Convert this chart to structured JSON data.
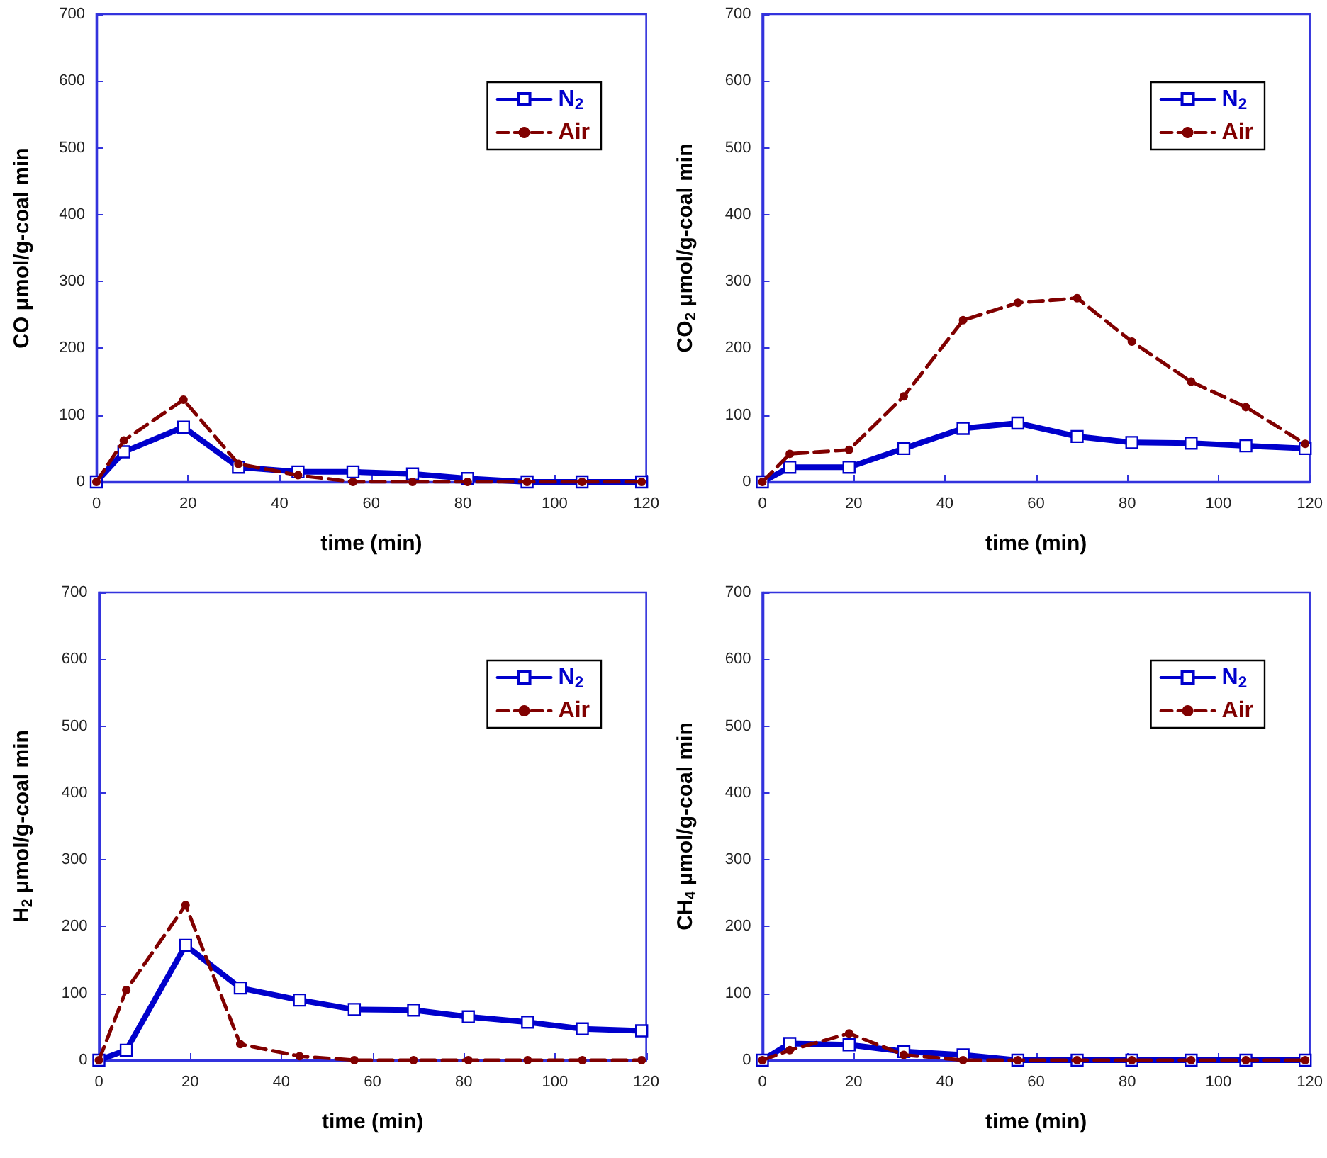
{
  "chart_data": [
    {
      "type": "line",
      "xlabel": "time (min)",
      "ylabel": "CO μmol/g-coal min",
      "x": [
        0,
        6,
        19,
        31,
        44,
        56,
        69,
        81,
        94,
        106,
        119
      ],
      "xlim": [
        0,
        120
      ],
      "xticks": [
        0,
        20,
        40,
        60,
        80,
        100,
        120
      ],
      "ylim": [
        0,
        700
      ],
      "yticks": [
        0,
        100,
        200,
        300,
        400,
        500,
        600,
        700
      ],
      "grid": false,
      "legend": "top right",
      "series": [
        {
          "name": "N$_{2}$",
          "color": "#0000cc",
          "marker": "square",
          "line_style": "solid",
          "values": [
            0,
            45,
            82,
            22,
            15,
            15,
            12,
            5,
            0,
            0,
            0
          ]
        },
        {
          "name": "Air",
          "color": "#800000",
          "marker": "circle",
          "line_style": "dashed",
          "values": [
            0,
            62,
            123,
            27,
            10,
            0,
            0,
            0,
            0,
            0,
            0
          ]
        }
      ]
    },
    {
      "type": "line",
      "xlabel": "time (min)",
      "ylabel": "CO$_{2}$ μmol/g-coal min",
      "x": [
        0,
        6,
        19,
        31,
        44,
        56,
        69,
        81,
        94,
        106,
        119
      ],
      "xlim": [
        0,
        120
      ],
      "xticks": [
        0,
        20,
        40,
        60,
        80,
        100,
        120
      ],
      "ylim": [
        0,
        700
      ],
      "yticks": [
        0,
        100,
        200,
        300,
        400,
        500,
        600,
        700
      ],
      "grid": false,
      "legend": "top right",
      "series": [
        {
          "name": "N$_{2}$",
          "color": "#0000cc",
          "marker": "square",
          "line_style": "solid",
          "values": [
            0,
            22,
            22,
            50,
            80,
            88,
            68,
            59,
            58,
            54,
            50
          ]
        },
        {
          "name": "Air",
          "color": "#800000",
          "marker": "circle",
          "line_style": "dashed",
          "values": [
            0,
            42,
            48,
            128,
            242,
            268,
            275,
            210,
            150,
            112,
            57
          ]
        }
      ]
    },
    {
      "type": "line",
      "xlabel": "time (min)",
      "ylabel": "H$_{2}$ μmol/g-coal min",
      "x": [
        0,
        6,
        19,
        31,
        44,
        56,
        69,
        81,
        94,
        106,
        119
      ],
      "xlim": [
        0,
        120
      ],
      "xticks": [
        0,
        20,
        40,
        60,
        80,
        100,
        120
      ],
      "ylim": [
        0,
        700
      ],
      "yticks": [
        0,
        100,
        200,
        300,
        400,
        500,
        600,
        700
      ],
      "grid": false,
      "legend": "top right",
      "series": [
        {
          "name": "N$_{2}$",
          "color": "#0000cc",
          "marker": "square",
          "line_style": "solid",
          "values": [
            0,
            15,
            172,
            108,
            90,
            76,
            75,
            65,
            57,
            47,
            44
          ]
        },
        {
          "name": "Air",
          "color": "#800000",
          "marker": "circle",
          "line_style": "dashed",
          "values": [
            0,
            105,
            232,
            24,
            6,
            0,
            0,
            0,
            0,
            0,
            0
          ]
        }
      ]
    },
    {
      "type": "line",
      "xlabel": "time (min)",
      "ylabel": "CH$_{4}$ μmol/g-coal min",
      "x": [
        0,
        6,
        19,
        31,
        44,
        56,
        69,
        81,
        94,
        106,
        119
      ],
      "xlim": [
        0,
        120
      ],
      "xticks": [
        0,
        20,
        40,
        60,
        80,
        100,
        120
      ],
      "ylim": [
        0,
        700
      ],
      "yticks": [
        0,
        100,
        200,
        300,
        400,
        500,
        600,
        700
      ],
      "grid": false,
      "legend": "top right",
      "series": [
        {
          "name": "N$_{2}$",
          "color": "#0000cc",
          "marker": "square",
          "line_style": "solid",
          "values": [
            0,
            25,
            23,
            13,
            8,
            0,
            0,
            0,
            0,
            0,
            0
          ]
        },
        {
          "name": "Air",
          "color": "#800000",
          "marker": "circle",
          "line_style": "dashed",
          "values": [
            0,
            15,
            40,
            8,
            0,
            0,
            0,
            0,
            0,
            0,
            0
          ]
        }
      ]
    }
  ]
}
